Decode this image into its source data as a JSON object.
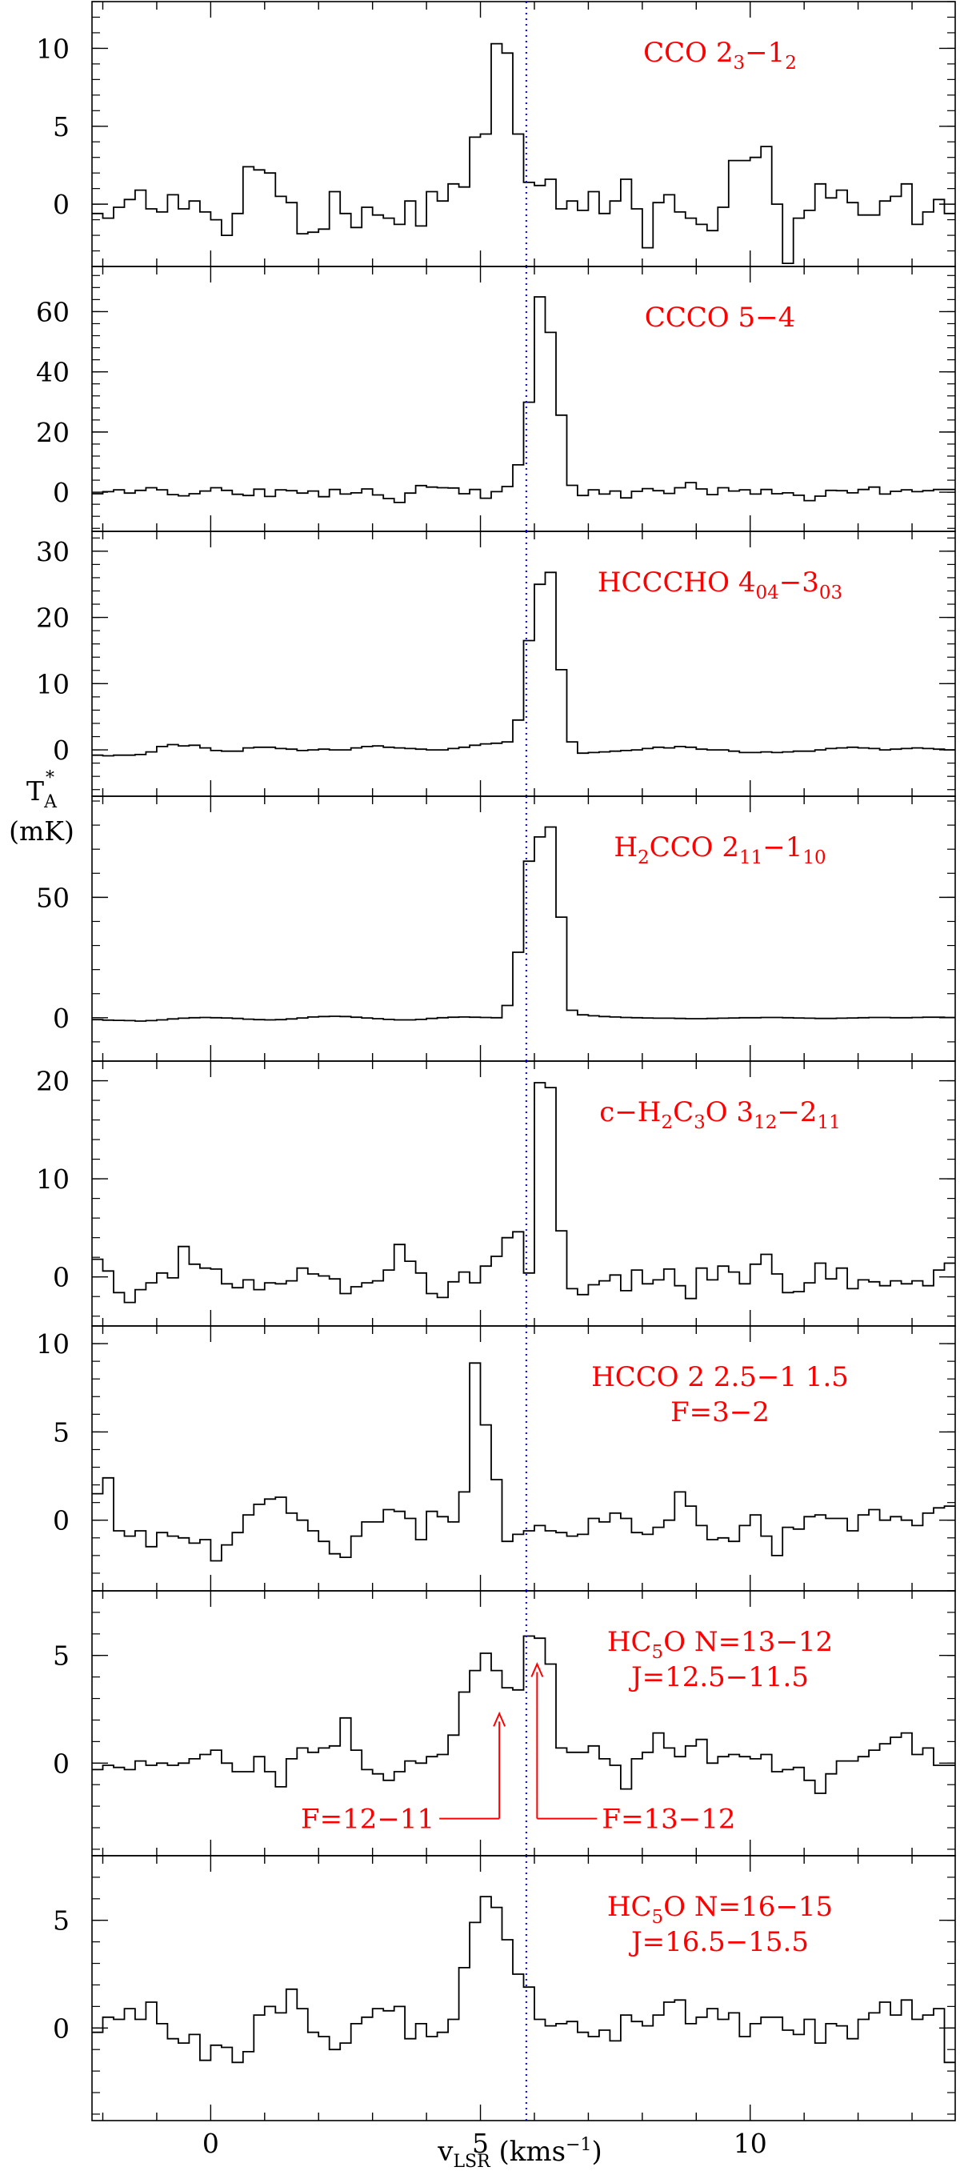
{
  "figure": {
    "ylabel_main": "T",
    "ylabel_sup": "*",
    "ylabel_sub": "A",
    "ylabel_unit": "(mK)",
    "xlabel_main": "v",
    "xlabel_sub": "LSR",
    "xlabel_unit_pre": " (kms",
    "xlabel_unit_sup": "−1",
    "xlabel_unit_post": ")",
    "line_color": "#000000",
    "label_color": "#ff0000",
    "marker_color": "#0000ff"
  },
  "chart_data": {
    "type": "line",
    "style": "step histogram, 8 vertically stacked panels sharing one x axis",
    "xlabel": "vLSR (kms−1)",
    "ylabel": "T*A (mK)",
    "xlim": [
      -2.2,
      13.8
    ],
    "x_ticks": [
      0,
      5,
      10
    ],
    "x_tick_labels": [
      "0",
      "5",
      "10"
    ],
    "dotted_line_x": 5.85,
    "channel_start": -2.2,
    "channel_width": 0.2,
    "panels": [
      {
        "label_parts": [
          {
            "t": "CCO 2"
          },
          {
            "t": "3",
            "sub": true
          },
          {
            "t": "−1"
          },
          {
            "t": "2",
            "sub": true
          }
        ],
        "ylim": [
          -4,
          13
        ],
        "y_ticks": [
          0,
          5,
          10
        ],
        "y_tick_labels": [
          "0",
          "5",
          "10"
        ],
        "values": [
          -0.6,
          -0.9,
          -0.2,
          0.3,
          0.9,
          -0.3,
          -0.5,
          0.6,
          -0.3,
          0.2,
          -0.5,
          -1.0,
          -2.0,
          -0.6,
          2.4,
          2.2,
          2.0,
          0.5,
          0.1,
          -1.9,
          -1.8,
          -1.6,
          0.8,
          -0.6,
          -1.5,
          -0.2,
          -0.7,
          -0.9,
          -1.3,
          0.2,
          -1.4,
          0.8,
          0.2,
          1.3,
          1.1,
          4.3,
          4.5,
          10.3,
          9.7,
          4.5,
          1.4,
          1.2,
          1.6,
          -0.3,
          0.2,
          -0.4,
          0.8,
          -0.6,
          0.2,
          1.6,
          -0.3,
          -2.8,
          0.1,
          0.6,
          -0.5,
          -0.9,
          -1.3,
          -1.7,
          -0.2,
          2.8,
          2.8,
          3.0,
          3.7,
          0.0,
          -3.8,
          -0.9,
          -0.4,
          1.3,
          0.4,
          0.9,
          0.1,
          -0.7,
          -0.7,
          0.2,
          0.5,
          1.3,
          -1.3,
          -0.5,
          0.3,
          -0.6
        ]
      },
      {
        "label_parts": [
          {
            "t": "CCCO 5−4"
          }
        ],
        "ylim": [
          -13,
          75
        ],
        "y_ticks": [
          0,
          20,
          40,
          60
        ],
        "y_tick_labels": [
          "0",
          "20",
          "40",
          "60"
        ],
        "values": [
          -0.5,
          0.2,
          0.8,
          -0.3,
          0.6,
          1.5,
          0.8,
          -0.8,
          -1.2,
          -0.5,
          0.4,
          1.5,
          0.6,
          -0.7,
          -1.1,
          1.0,
          -1.4,
          0.8,
          0.5,
          -0.3,
          0.4,
          -1.5,
          0.9,
          -0.6,
          -0.2,
          1.1,
          -0.9,
          -2.1,
          -3.4,
          -0.3,
          2.2,
          1.7,
          1.5,
          1.4,
          -0.5,
          0.9,
          -2.0,
          0.2,
          1.9,
          9.1,
          29.9,
          64.9,
          53.1,
          25.6,
          2.3,
          -1.1,
          0.8,
          -0.6,
          0.4,
          -1.9,
          0.3,
          1.2,
          0.5,
          -0.4,
          1.5,
          3.2,
          1.1,
          -0.8,
          1.5,
          0.4,
          0.8,
          -0.6,
          0.9,
          -0.5,
          -0.2,
          -1.0,
          -2.8,
          -1.3,
          0.6,
          0.5,
          -0.2,
          0.9,
          1.7,
          -0.6,
          0.3,
          0.8,
          0.2,
          0.5,
          0.9,
          0.9
        ]
      },
      {
        "label_parts": [
          {
            "t": "HCCCHO 4"
          },
          {
            "t": "04",
            "sub": true
          },
          {
            "t": "−3"
          },
          {
            "t": "03",
            "sub": true
          }
        ],
        "ylim": [
          -7,
          33
        ],
        "y_ticks": [
          0,
          10,
          20,
          30
        ],
        "y_tick_labels": [
          "0",
          "10",
          "20",
          "30"
        ],
        "values": [
          -0.8,
          -0.9,
          -0.8,
          -0.8,
          -0.7,
          -0.3,
          0.5,
          0.8,
          0.6,
          0.7,
          0.3,
          -0.1,
          -0.2,
          -0.2,
          0.3,
          0.4,
          0.4,
          0.2,
          0.1,
          -0.1,
          0.0,
          0.1,
          0.0,
          0.0,
          0.3,
          0.5,
          0.6,
          0.4,
          0.3,
          0.2,
          0.1,
          0.0,
          0.0,
          0.2,
          0.4,
          0.7,
          0.9,
          1.0,
          1.2,
          4.5,
          16.5,
          25.0,
          26.8,
          12.1,
          1.2,
          -0.5,
          -0.4,
          -0.3,
          -0.2,
          -0.1,
          0.0,
          0.2,
          0.4,
          0.3,
          0.5,
          0.4,
          0.1,
          0.0,
          0.0,
          -0.2,
          -0.4,
          -0.4,
          -0.3,
          -0.4,
          -0.3,
          -0.2,
          -0.2,
          0.0,
          0.2,
          0.3,
          0.4,
          0.3,
          0.2,
          0.0,
          0.1,
          0.2,
          0.3,
          0.2,
          0.1,
          0.0
        ]
      },
      {
        "label_parts": [
          {
            "t": "H"
          },
          {
            "t": "2",
            "sub": true
          },
          {
            "t": "CCO 2"
          },
          {
            "t": "11",
            "sub": true
          },
          {
            "t": "−1"
          },
          {
            "t": "10",
            "sub": true
          }
        ],
        "ylim": [
          -18,
          92
        ],
        "y_ticks": [
          0,
          50
        ],
        "y_tick_labels": [
          "0",
          "50"
        ],
        "values": [
          -0.8,
          -1.0,
          -1.1,
          -1.2,
          -1.4,
          -1.2,
          -0.9,
          -0.5,
          -0.2,
          0.0,
          0.1,
          0.0,
          -0.1,
          -0.3,
          -0.6,
          -0.8,
          -0.9,
          -0.8,
          -0.5,
          -0.1,
          0.3,
          0.5,
          0.6,
          0.5,
          0.2,
          -0.1,
          -0.4,
          -0.7,
          -0.9,
          -0.9,
          -0.7,
          -0.3,
          0.0,
          0.2,
          0.3,
          0.2,
          0.1,
          0.0,
          5.1,
          27.2,
          65.0,
          75.1,
          79.2,
          41.8,
          3.1,
          1.2,
          0.8,
          0.5,
          0.3,
          0.1,
          0.0,
          -0.1,
          -0.2,
          -0.2,
          -0.3,
          -0.4,
          -0.4,
          -0.3,
          -0.2,
          -0.1,
          0.0,
          0.0,
          0.1,
          0.1,
          0.0,
          -0.1,
          -0.2,
          -0.3,
          -0.3,
          -0.2,
          -0.1,
          0.0,
          0.1,
          0.1,
          0.0,
          0.0,
          0.1,
          0.2,
          0.2,
          0.1
        ]
      },
      {
        "label_parts": [
          {
            "t": "c−H"
          },
          {
            "t": "2",
            "sub": true
          },
          {
            "t": "C"
          },
          {
            "t": "3",
            "sub": true
          },
          {
            "t": "O 3"
          },
          {
            "t": "12",
            "sub": true
          },
          {
            "t": "−2"
          },
          {
            "t": "11",
            "sub": true
          }
        ],
        "ylim": [
          -5,
          22
        ],
        "y_ticks": [
          0,
          10,
          20
        ],
        "y_tick_labels": [
          "0",
          "10",
          "20"
        ],
        "values": [
          1.8,
          0.6,
          -1.6,
          -2.6,
          -1.3,
          -0.6,
          0.4,
          -0.1,
          3.1,
          1.3,
          0.9,
          0.8,
          -0.7,
          -1.1,
          -0.3,
          -1.3,
          -0.6,
          -0.7,
          -0.4,
          0.9,
          0.3,
          0.1,
          -0.2,
          -1.7,
          -1.0,
          -0.6,
          -0.4,
          0.7,
          3.3,
          1.6,
          0.4,
          -1.7,
          -2.1,
          -0.5,
          0.5,
          -0.6,
          1.1,
          2.1,
          4.0,
          4.6,
          0.4,
          19.8,
          19.3,
          4.7,
          -1.2,
          -1.8,
          -0.8,
          -0.4,
          0.2,
          -1.4,
          0.7,
          -0.7,
          -0.3,
          0.8,
          -0.9,
          -2.2,
          0.9,
          -0.3,
          1.1,
          0.5,
          -0.7,
          1.3,
          2.3,
          0.3,
          -1.6,
          -1.5,
          -0.6,
          1.4,
          -0.2,
          0.9,
          -1.2,
          -0.3,
          -0.5,
          -0.9,
          -0.4,
          -0.7,
          -0.4,
          -0.9,
          0.7,
          1.4
        ]
      },
      {
        "label_parts": [
          {
            "t": "HCCO 2 2.5−1 1.5"
          },
          {
            "br": true
          },
          {
            "t": "F=3−2"
          }
        ],
        "ylim": [
          -4,
          11
        ],
        "y_ticks": [
          0,
          5,
          10
        ],
        "y_tick_labels": [
          "0",
          "5",
          "10"
        ],
        "values": [
          1.5,
          2.4,
          -0.6,
          -0.9,
          -0.6,
          -1.5,
          -0.7,
          -0.9,
          -1.0,
          -1.3,
          -1.1,
          -2.3,
          -1.4,
          -0.7,
          0.3,
          0.9,
          1.2,
          1.3,
          0.4,
          0.0,
          -0.6,
          -1.2,
          -1.9,
          -2.1,
          -0.9,
          -0.1,
          -0.1,
          0.6,
          0.5,
          0.1,
          -1.1,
          0.5,
          0.2,
          -0.1,
          1.6,
          8.9,
          5.4,
          2.3,
          -1.2,
          -0.8,
          -0.6,
          -0.3,
          -0.6,
          -0.7,
          -0.9,
          -0.8,
          0.1,
          -0.1,
          0.4,
          0.1,
          -0.7,
          -0.8,
          -0.4,
          0.0,
          1.6,
          0.8,
          -0.3,
          -1.1,
          -1.0,
          -1.2,
          -0.3,
          0.3,
          -0.9,
          -2.0,
          -0.4,
          -0.5,
          0.2,
          0.3,
          0.1,
          0.1,
          -0.6,
          0.3,
          0.6,
          0.0,
          0.2,
          0.0,
          -0.3,
          0.4,
          0.7,
          0.8
        ]
      },
      {
        "label_parts": [
          {
            "t": "HC"
          },
          {
            "t": "5",
            "sub": true
          },
          {
            "t": "O N=13−12"
          },
          {
            "br": true
          },
          {
            "t": "J=12.5−11.5"
          }
        ],
        "ylim": [
          -4.3,
          8
        ],
        "y_ticks": [
          0,
          5
        ],
        "y_tick_labels": [
          "0",
          "5"
        ],
        "values": [
          -0.3,
          -0.1,
          -0.2,
          -0.3,
          0.1,
          -0.1,
          0.0,
          -0.1,
          0.0,
          0.2,
          0.4,
          0.6,
          0.0,
          -0.4,
          -0.4,
          0.3,
          -0.4,
          -1.1,
          0.2,
          0.7,
          0.5,
          0.7,
          0.8,
          2.1,
          0.6,
          -0.3,
          -0.5,
          -0.8,
          -0.4,
          0.1,
          0.0,
          0.3,
          0.4,
          1.3,
          3.3,
          4.3,
          5.1,
          4.3,
          3.5,
          3.4,
          5.9,
          5.8,
          4.6,
          0.7,
          0.5,
          0.5,
          0.8,
          0.2,
          -0.1,
          -1.2,
          0.2,
          0.5,
          1.4,
          0.7,
          0.3,
          0.8,
          1.1,
          0.0,
          0.3,
          0.4,
          0.3,
          0.2,
          0.4,
          -0.4,
          -0.3,
          -0.2,
          -0.8,
          -1.4,
          -0.5,
          0.1,
          0.1,
          0.3,
          0.6,
          0.9,
          1.2,
          1.4,
          0.4,
          0.7,
          -0.1,
          -0.1
        ],
        "annotations": [
          {
            "text": "F=12−11",
            "x": 5.35
          },
          {
            "text": "F=13−12",
            "x": 6.05
          }
        ]
      },
      {
        "label_parts": [
          {
            "t": "HC"
          },
          {
            "t": "5",
            "sub": true
          },
          {
            "t": "O N=16−15"
          },
          {
            "br": true
          },
          {
            "t": "J=16.5−15.5"
          }
        ],
        "ylim": [
          -4.3,
          8
        ],
        "y_ticks": [
          0,
          5
        ],
        "y_tick_labels": [
          "0",
          "5"
        ],
        "values": [
          -0.2,
          0.5,
          0.4,
          0.9,
          0.4,
          1.2,
          0.2,
          -0.5,
          -0.7,
          -0.3,
          -1.5,
          -0.8,
          -0.9,
          -1.6,
          -1.1,
          0.6,
          1.0,
          0.7,
          1.8,
          0.9,
          -0.2,
          -0.4,
          -1.0,
          -0.7,
          0.2,
          0.5,
          0.9,
          0.8,
          1.0,
          -0.5,
          0.2,
          -0.4,
          -0.2,
          0.4,
          2.8,
          4.9,
          6.1,
          5.6,
          4.1,
          2.5,
          1.9,
          0.4,
          0.1,
          0.2,
          0.3,
          -0.2,
          -0.4,
          -0.1,
          -0.6,
          0.6,
          0.3,
          0.1,
          0.6,
          1.2,
          1.3,
          0.2,
          0.5,
          0.9,
          0.4,
          0.7,
          -0.4,
          0.2,
          0.5,
          0.5,
          -0.1,
          -0.3,
          0.4,
          -0.7,
          0.2,
          0.1,
          -0.5,
          0.4,
          0.7,
          1.2,
          0.6,
          1.3,
          0.4,
          0.6,
          0.9,
          -1.6
        ]
      }
    ]
  }
}
